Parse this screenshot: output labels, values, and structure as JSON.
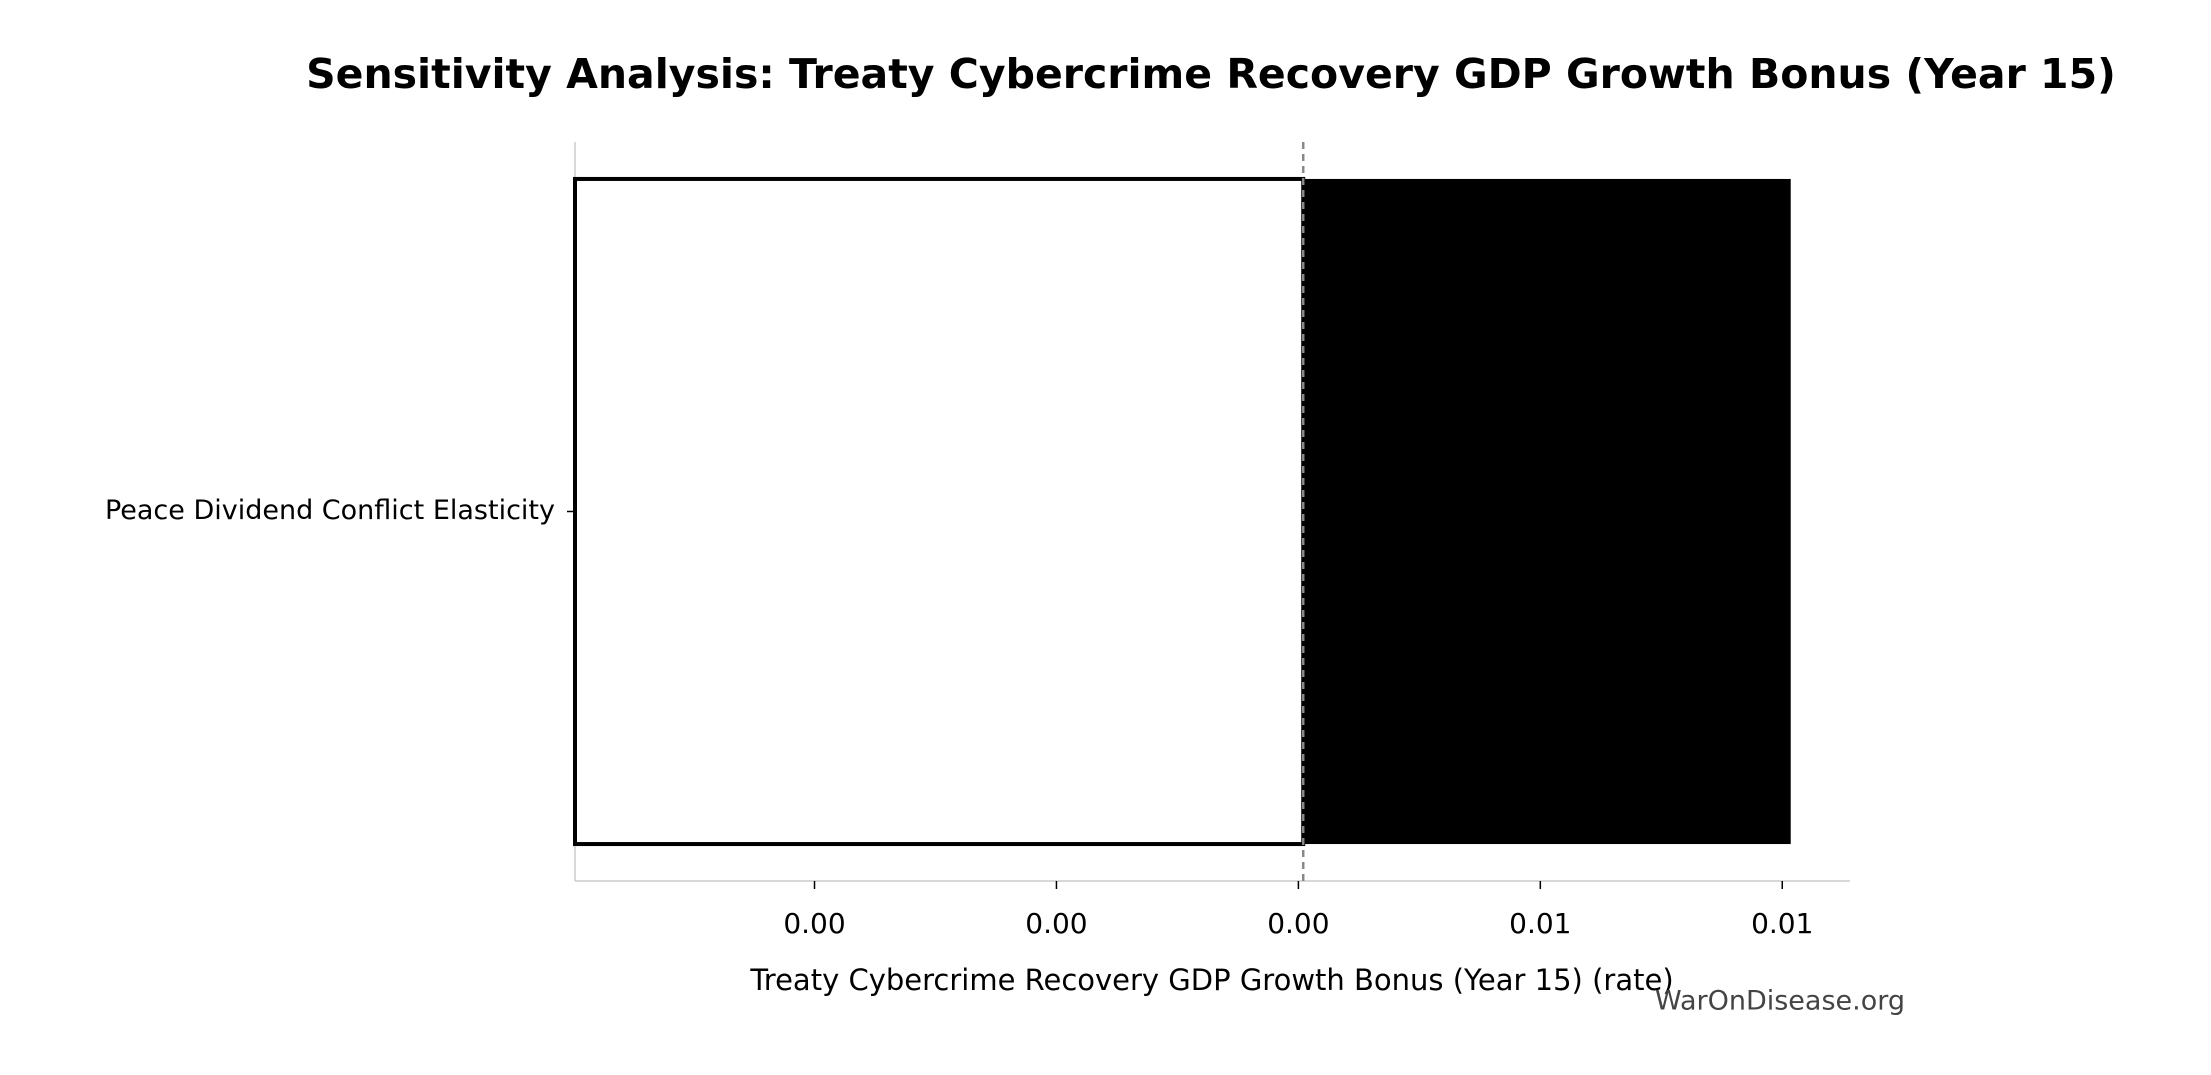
{
  "chart_data": {
    "type": "tornado",
    "title": "Sensitivity Analysis: Treaty Cybercrime Recovery GDP Growth Bonus (Year 15)",
    "xlabel": "Treaty Cybercrime Recovery GDP Growth Bonus (Year 15) (rate)",
    "categories": [
      "Peace Dividend Conflict Elasticity"
    ],
    "baseline": 0.00404,
    "low": [
      -0.00198
    ],
    "high": [
      0.00807
    ],
    "low_color": "#ffffff",
    "high_color": "#000000",
    "xlim": [
      -0.00198,
      0.00856
    ],
    "xticks": [
      {
        "value": 0,
        "label": "0.00"
      },
      {
        "value": 0.002,
        "label": "0.00"
      },
      {
        "value": 0.004,
        "label": "0.00"
      },
      {
        "value": 0.006,
        "label": "0.01"
      },
      {
        "value": 0.008,
        "label": "0.01"
      }
    ],
    "watermark": "WarOnDisease.org"
  }
}
